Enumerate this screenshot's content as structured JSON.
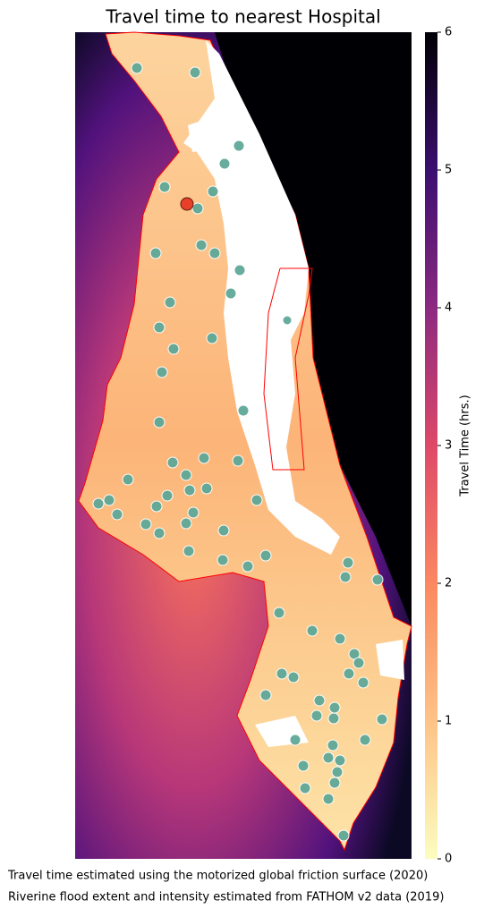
{
  "title": "Travel time to nearest Hospital",
  "colorbar": {
    "label": "Travel Time (hrs.)",
    "lim": [
      0,
      6
    ],
    "ticks": [
      0,
      1,
      2,
      3,
      4,
      5,
      6
    ]
  },
  "captions": [
    "Travel time estimated using the motorized global friction surface (2020)",
    "Riverine flood extent and intensity estimated from FATHOM v2 data (2019)"
  ]
}
